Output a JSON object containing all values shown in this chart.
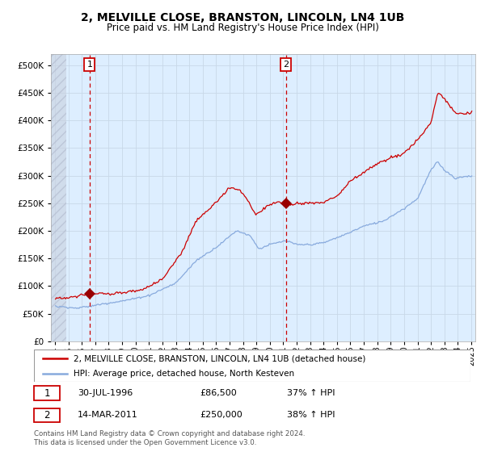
{
  "title": "2, MELVILLE CLOSE, BRANSTON, LINCOLN, LN4 1UB",
  "subtitle": "Price paid vs. HM Land Registry's House Price Index (HPI)",
  "legend_line1": "2, MELVILLE CLOSE, BRANSTON, LINCOLN, LN4 1UB (detached house)",
  "legend_line2": "HPI: Average price, detached house, North Kesteven",
  "annotation1_date": "30-JUL-1996",
  "annotation1_price": "£86,500",
  "annotation1_hpi": "37% ↑ HPI",
  "annotation2_date": "14-MAR-2011",
  "annotation2_price": "£250,000",
  "annotation2_hpi": "38% ↑ HPI",
  "point1_x": 1996.58,
  "point1_y": 86500,
  "point2_x": 2011.2,
  "point2_y": 250000,
  "vline1_x": 1996.58,
  "vline2_x": 2011.2,
  "red_color": "#cc0000",
  "blue_color": "#88aadd",
  "bg_color": "#ddeeff",
  "grid_color": "#c8d8e8",
  "footer": "Contains HM Land Registry data © Crown copyright and database right 2024.\nThis data is licensed under the Open Government Licence v3.0.",
  "xlim": [
    1993.7,
    2025.3
  ],
  "ylim": [
    0,
    520000
  ],
  "yticks": [
    0,
    50000,
    100000,
    150000,
    200000,
    250000,
    300000,
    350000,
    400000,
    450000,
    500000
  ]
}
